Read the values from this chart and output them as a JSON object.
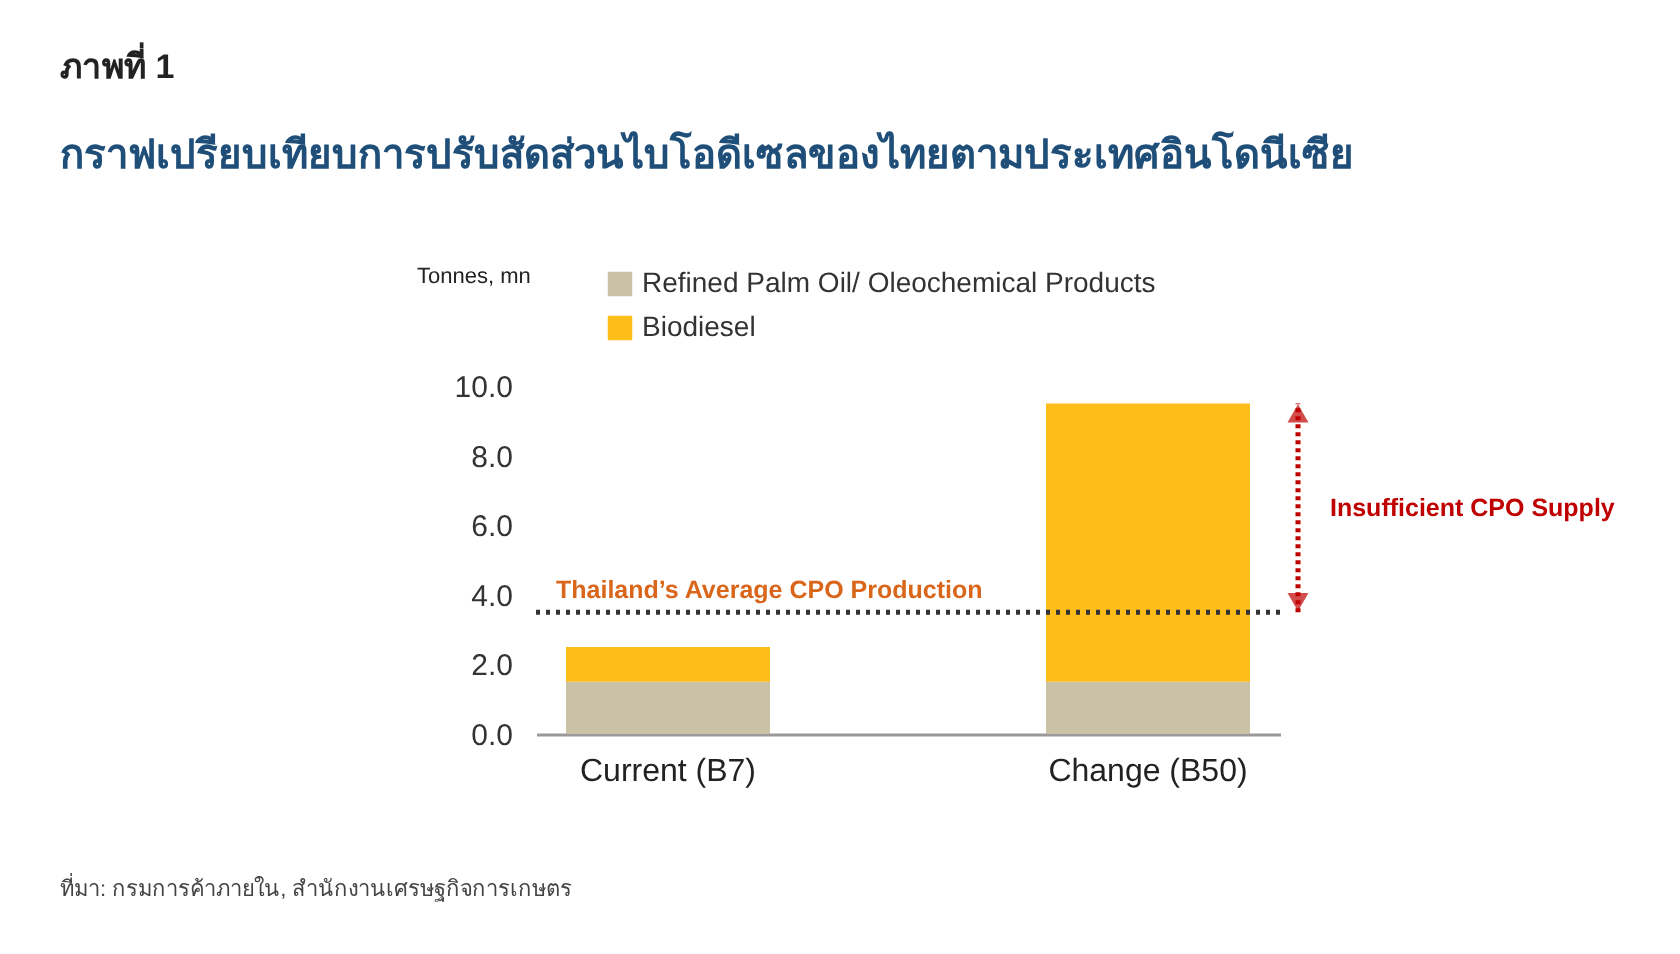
{
  "chart_data": {
    "type": "bar",
    "title": "ภาพที่ 1",
    "subtitle": "กราฟเปรียบเทียบการปรับสัดส่วนไบโอดีเซลของไทยตามประเทศอินโดนีเซีย",
    "ylabel": "Tonnes, mn",
    "categories": [
      "Current (B7)",
      "Change (B50)"
    ],
    "stacked": true,
    "series": [
      {
        "name": "Refined Palm Oil/ Oleochemical Products",
        "color": "#c9c2a6",
        "values": [
          1.5,
          1.5
        ]
      },
      {
        "name": "Biodiesel",
        "color": "#fdbe1a",
        "values": [
          1.0,
          8.0
        ]
      }
    ],
    "ylim": [
      0,
      10
    ],
    "yticks": [
      {
        "value": 0,
        "label": "0.0"
      },
      {
        "value": 2,
        "label": "2.0"
      },
      {
        "value": 4,
        "label": "4.0"
      },
      {
        "value": 6,
        "label": "6.0"
      },
      {
        "value": 8,
        "label": "8.0"
      },
      {
        "value": 10,
        "label": "10.0"
      }
    ],
    "grid": false,
    "legend": "top left",
    "ref_lines": [
      {
        "axis": "y",
        "value": 3.5,
        "label": "Thailand’s Average CPO Production",
        "color": "#333333",
        "line_style": "dotted"
      }
    ],
    "annotations": [
      "Insufficient CPO Supply",
      "ที่มา: กรมการค้าภายใน, สำนักงานเศรษฐกิจการเกษตร"
    ]
  }
}
